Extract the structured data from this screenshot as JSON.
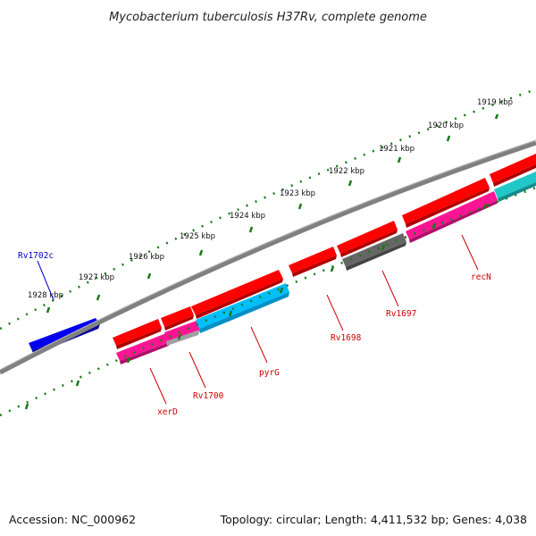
{
  "title": "Mycobacterium tuberculosis H37Rv, complete genome",
  "footer": {
    "accession": "Accession: NC_000962",
    "summary": "Topology: circular; Length: 4,411,532 bp; Genes: 4,038"
  },
  "ticks": [
    "1919 kbp",
    "1920 kbp",
    "1921 kbp",
    "1922 kbp",
    "1923 kbp",
    "1924 kbp",
    "1925 kbp",
    "1926 kbp",
    "1927 kbp",
    "1928 kbp"
  ],
  "gene_labels": [
    "recN",
    "Rv1697",
    "Rv1698",
    "pyrG",
    "Rv1700",
    "xerD",
    "Rv1702c"
  ],
  "colors": {
    "backbone": "#808080",
    "tick": "#1a7a1a",
    "cds_forward": "#ff0000",
    "gene_pink": "#ff1493",
    "gene_cyan": "#00bfff",
    "gene_teal": "#20c8c8",
    "gene_gray": "#666666",
    "gene_reverse": "#0000ee",
    "label_forward": "#cc0000",
    "label_reverse": "#0000cc"
  }
}
